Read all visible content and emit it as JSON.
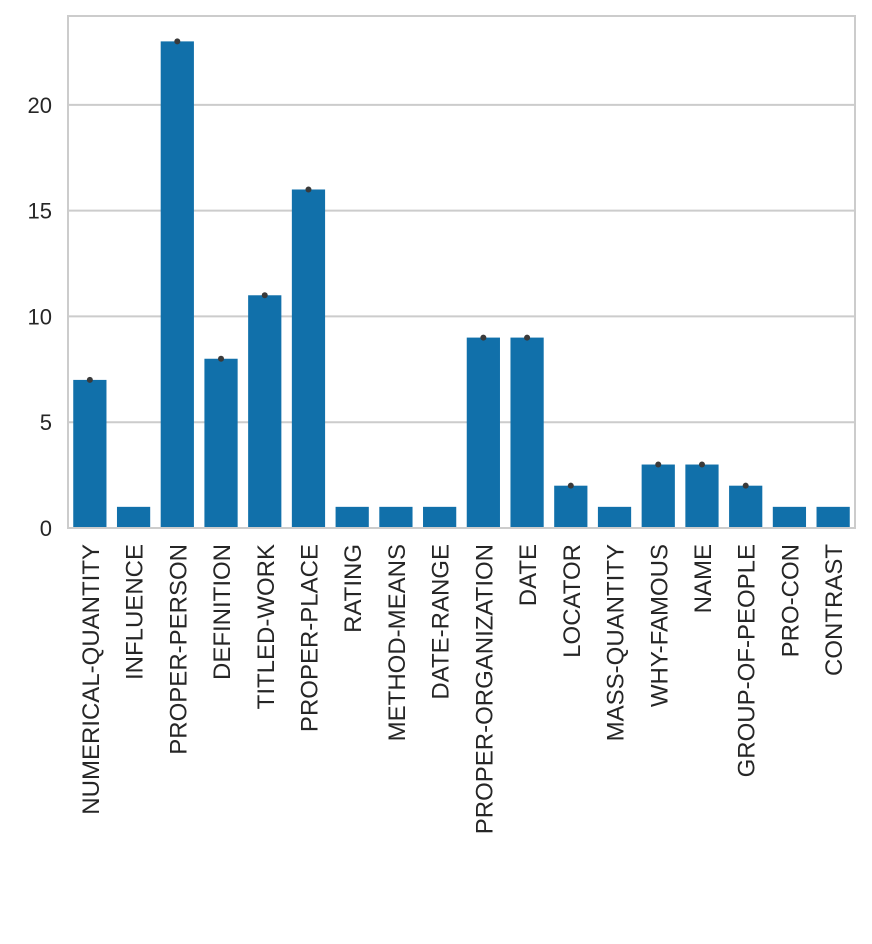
{
  "chart_data": {
    "type": "bar",
    "title": "",
    "xlabel": "",
    "ylabel": "",
    "categories": [
      "NUMERICAL-QUANTITY",
      "INFLUENCE",
      "PROPER-PERSON",
      "DEFINITION",
      "TITLED-WORK",
      "PROPER-PLACE",
      "RATING",
      "METHOD-MEANS",
      "DATE-RANGE",
      "PROPER-ORGANIZATION",
      "DATE",
      "LOCATOR",
      "MASS-QUANTITY",
      "WHY-FAMOUS",
      "NAME",
      "GROUP-OF-PEOPLE",
      "PRO-CON",
      "CONTRAST"
    ],
    "values": [
      7,
      1,
      23,
      8,
      11,
      16,
      1,
      1,
      1,
      9,
      9,
      2,
      1,
      3,
      3,
      2,
      1,
      1
    ],
    "ylim": [
      0,
      24.2
    ],
    "yticks": [
      "0",
      "5",
      "10",
      "15",
      "20"
    ],
    "grid": "horizontal",
    "bar_color": "#1170aa",
    "error_marker_color": "#3a3a3a"
  }
}
